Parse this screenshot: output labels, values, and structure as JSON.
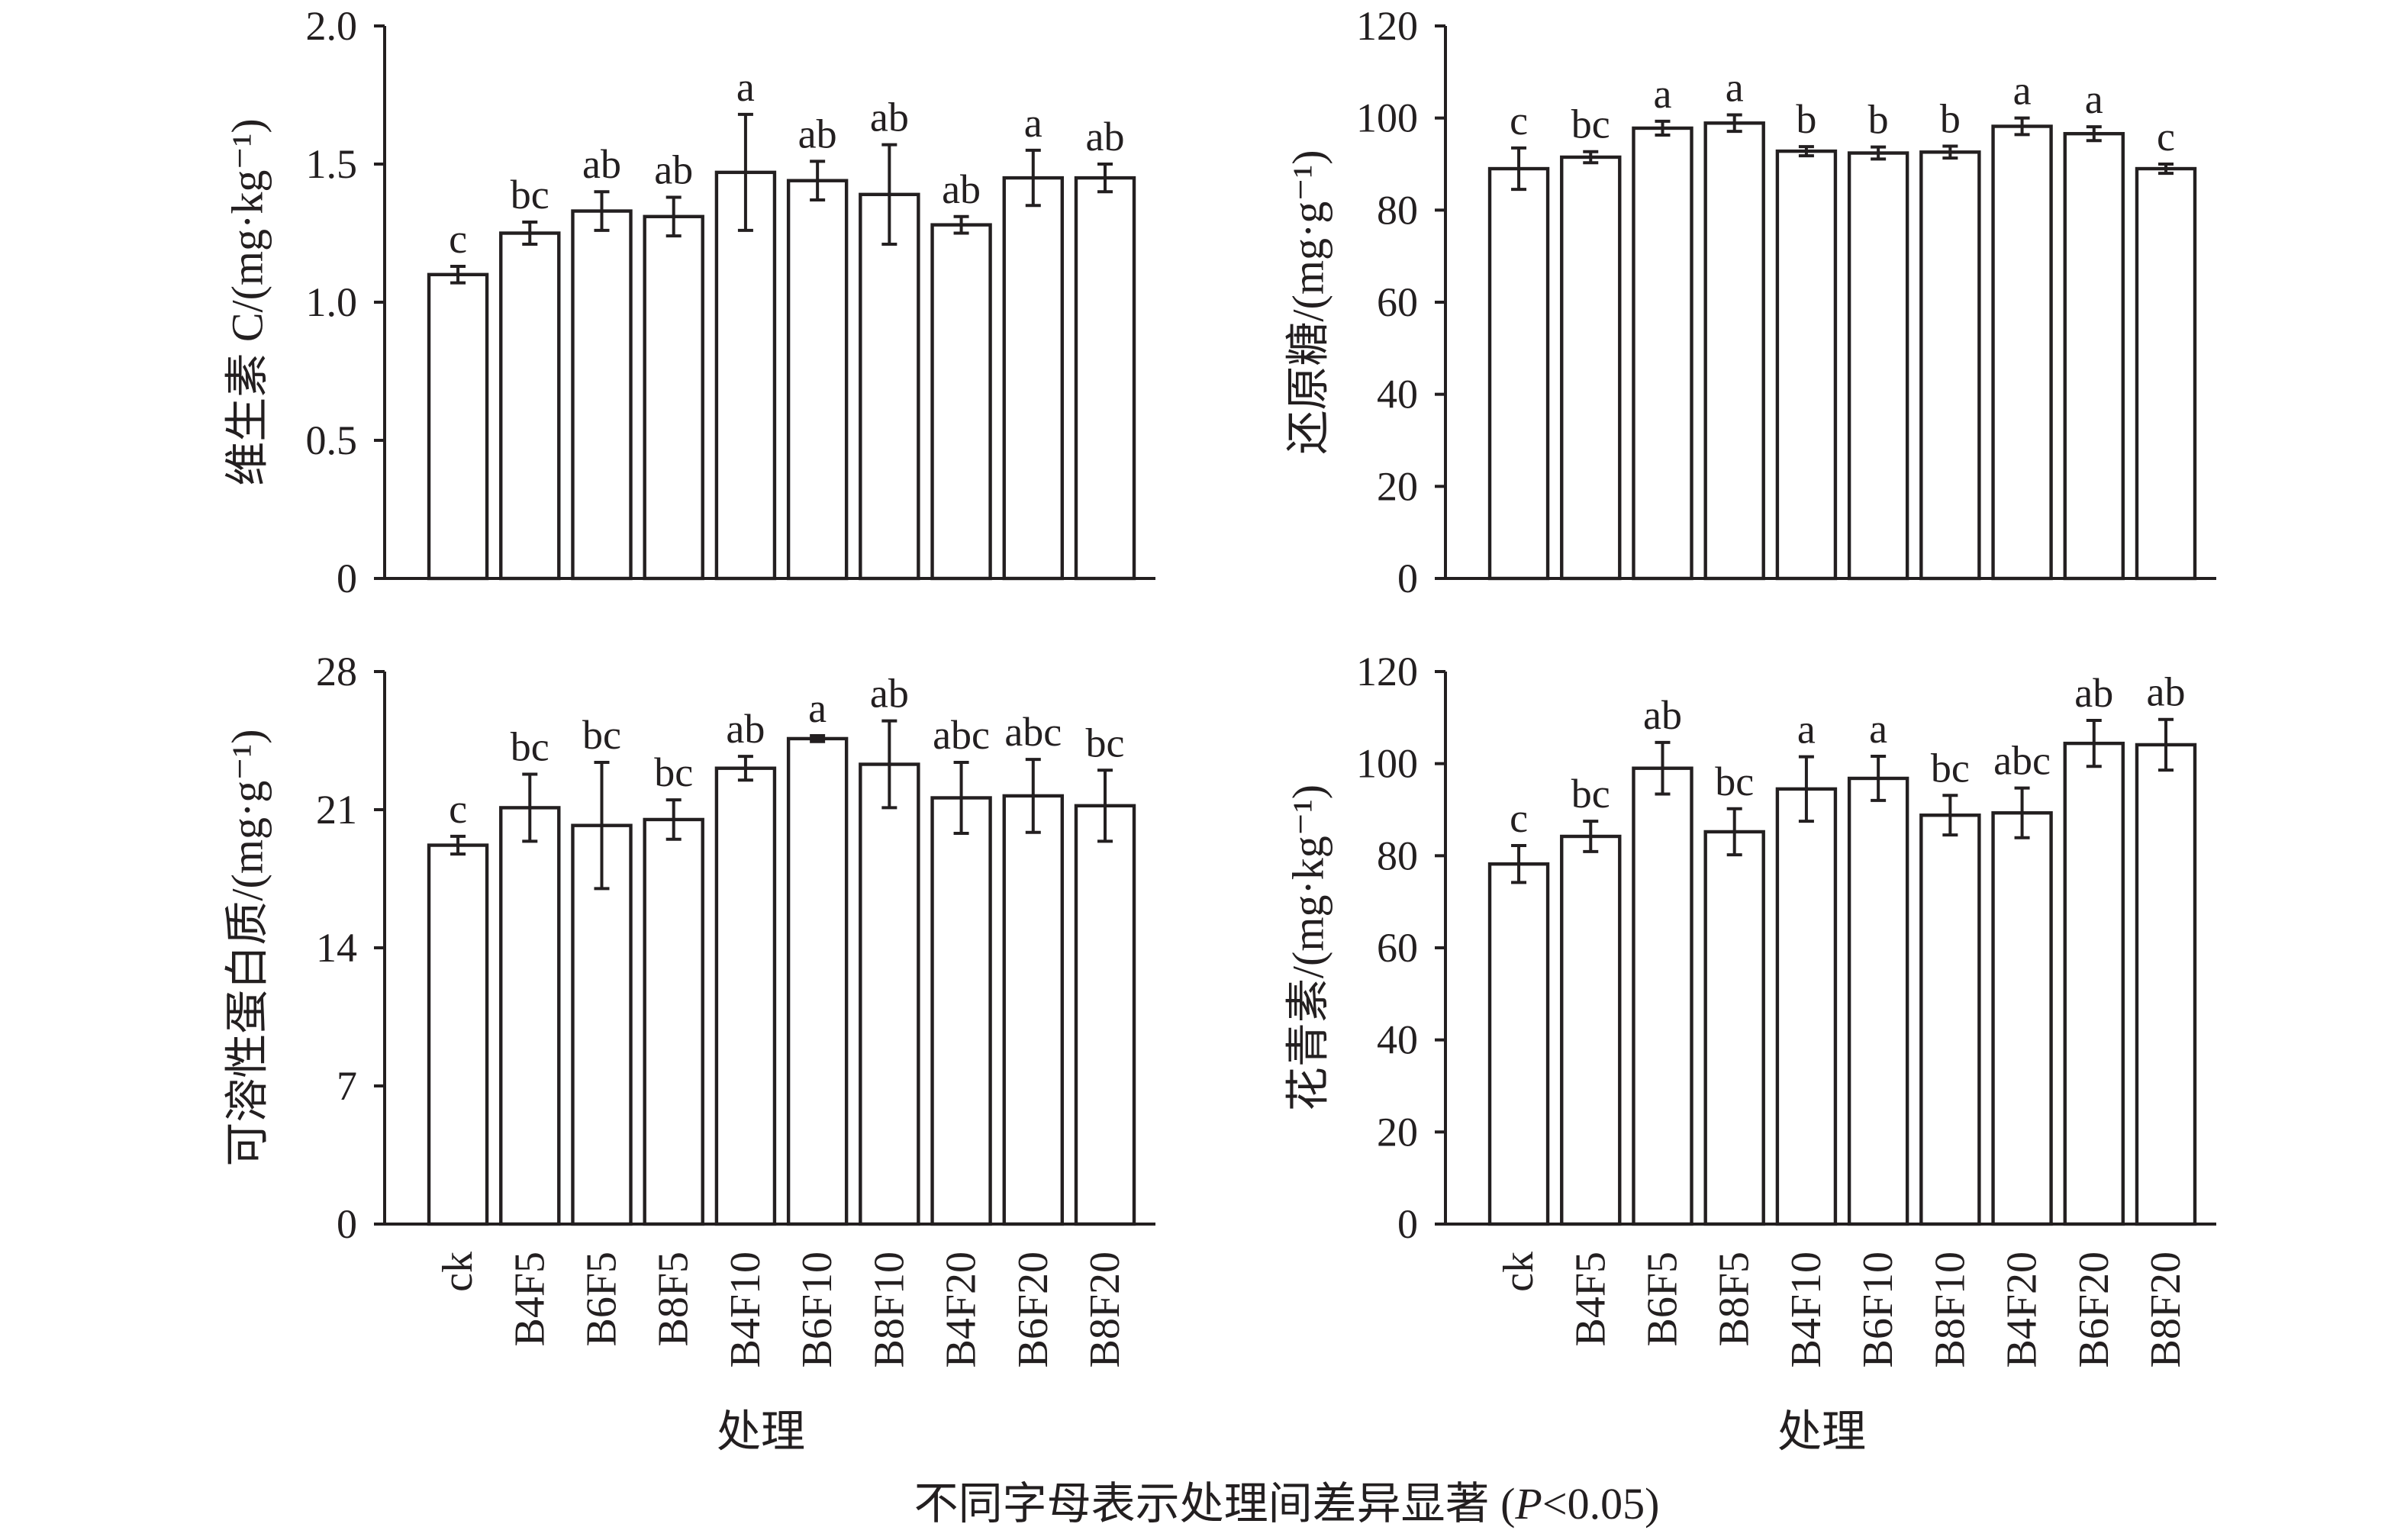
{
  "caption": {
    "prefix": "不同字母表示处理间差异显著 (",
    "italic": "P",
    "suffix": "<0.05)"
  },
  "chart_data": [
    {
      "type": "bar",
      "ylabel": "维生素 C/(mg·kg⁻¹)",
      "ylim": [
        0,
        2.0
      ],
      "yticks": [
        "0",
        "0.5",
        "1.0",
        "1.5",
        "2.0"
      ],
      "categories": [
        "ck",
        "B4F5",
        "B6F5",
        "B8F5",
        "B4F10",
        "B6F10",
        "B8F10",
        "B4F20",
        "B6F20",
        "B8F20"
      ],
      "values": [
        1.1,
        1.25,
        1.33,
        1.31,
        1.47,
        1.44,
        1.39,
        1.28,
        1.45,
        1.45
      ],
      "errors": [
        0.03,
        0.04,
        0.07,
        0.07,
        0.21,
        0.07,
        0.18,
        0.03,
        0.1,
        0.05
      ],
      "letters": [
        "c",
        "bc",
        "ab",
        "ab",
        "a",
        "ab",
        "ab",
        "ab",
        "a",
        "ab"
      ]
    },
    {
      "type": "bar",
      "ylabel": "还原糖/(mg·g⁻¹)",
      "ylim": [
        0,
        120
      ],
      "yticks": [
        "0",
        "20",
        "40",
        "60",
        "80",
        "100",
        "120"
      ],
      "categories": [
        "ck",
        "B4F5",
        "B6F5",
        "B8F5",
        "B4F10",
        "B6F10",
        "B8F10",
        "B4F20",
        "B6F20",
        "B8F20"
      ],
      "values": [
        89.0,
        91.5,
        97.8,
        98.9,
        92.8,
        92.4,
        92.6,
        98.2,
        96.6,
        89.0
      ],
      "errors": [
        4.5,
        1.2,
        1.5,
        1.8,
        1.0,
        1.3,
        1.3,
        1.8,
        1.5,
        1.0
      ],
      "letters": [
        "c",
        "bc",
        "a",
        "a",
        "b",
        "b",
        "b",
        "a",
        "a",
        "c"
      ]
    },
    {
      "type": "bar",
      "ylabel": "可溶性蛋白质/(mg·g⁻¹)",
      "xlabel": "处理",
      "ylim": [
        0,
        28
      ],
      "yticks": [
        "0",
        "7",
        "14",
        "21",
        "28"
      ],
      "categories": [
        "ck",
        "B4F5",
        "B6F5",
        "B8F5",
        "B4F10",
        "B6F10",
        "B8F10",
        "B4F20",
        "B6F20",
        "B8F20"
      ],
      "values": [
        19.2,
        21.1,
        20.2,
        20.5,
        23.1,
        24.6,
        23.3,
        21.6,
        21.7,
        21.2
      ],
      "errors": [
        0.45,
        1.7,
        3.2,
        1.0,
        0.6,
        0.15,
        2.2,
        1.8,
        1.85,
        1.8
      ],
      "letters": [
        "c",
        "bc",
        "bc",
        "bc",
        "ab",
        "a",
        "ab",
        "abc",
        "abc",
        "bc"
      ]
    },
    {
      "type": "bar",
      "ylabel": "花青素/(mg·kg⁻¹)",
      "xlabel": "处理",
      "ylim": [
        0,
        120
      ],
      "yticks": [
        "0",
        "20",
        "40",
        "60",
        "80",
        "100",
        "120"
      ],
      "categories": [
        "ck",
        "B4F5",
        "B6F5",
        "B8F5",
        "B4F10",
        "B6F10",
        "B8F10",
        "B4F20",
        "B6F20",
        "B8F20"
      ],
      "values": [
        78.2,
        84.2,
        99.0,
        85.2,
        94.5,
        96.8,
        88.8,
        89.3,
        104.4,
        104.1
      ],
      "errors": [
        4.0,
        3.3,
        5.6,
        5.0,
        7.0,
        4.8,
        4.3,
        5.4,
        5.0,
        5.5
      ],
      "letters": [
        "c",
        "bc",
        "ab",
        "bc",
        "a",
        "a",
        "bc",
        "abc",
        "ab",
        "ab"
      ]
    }
  ]
}
